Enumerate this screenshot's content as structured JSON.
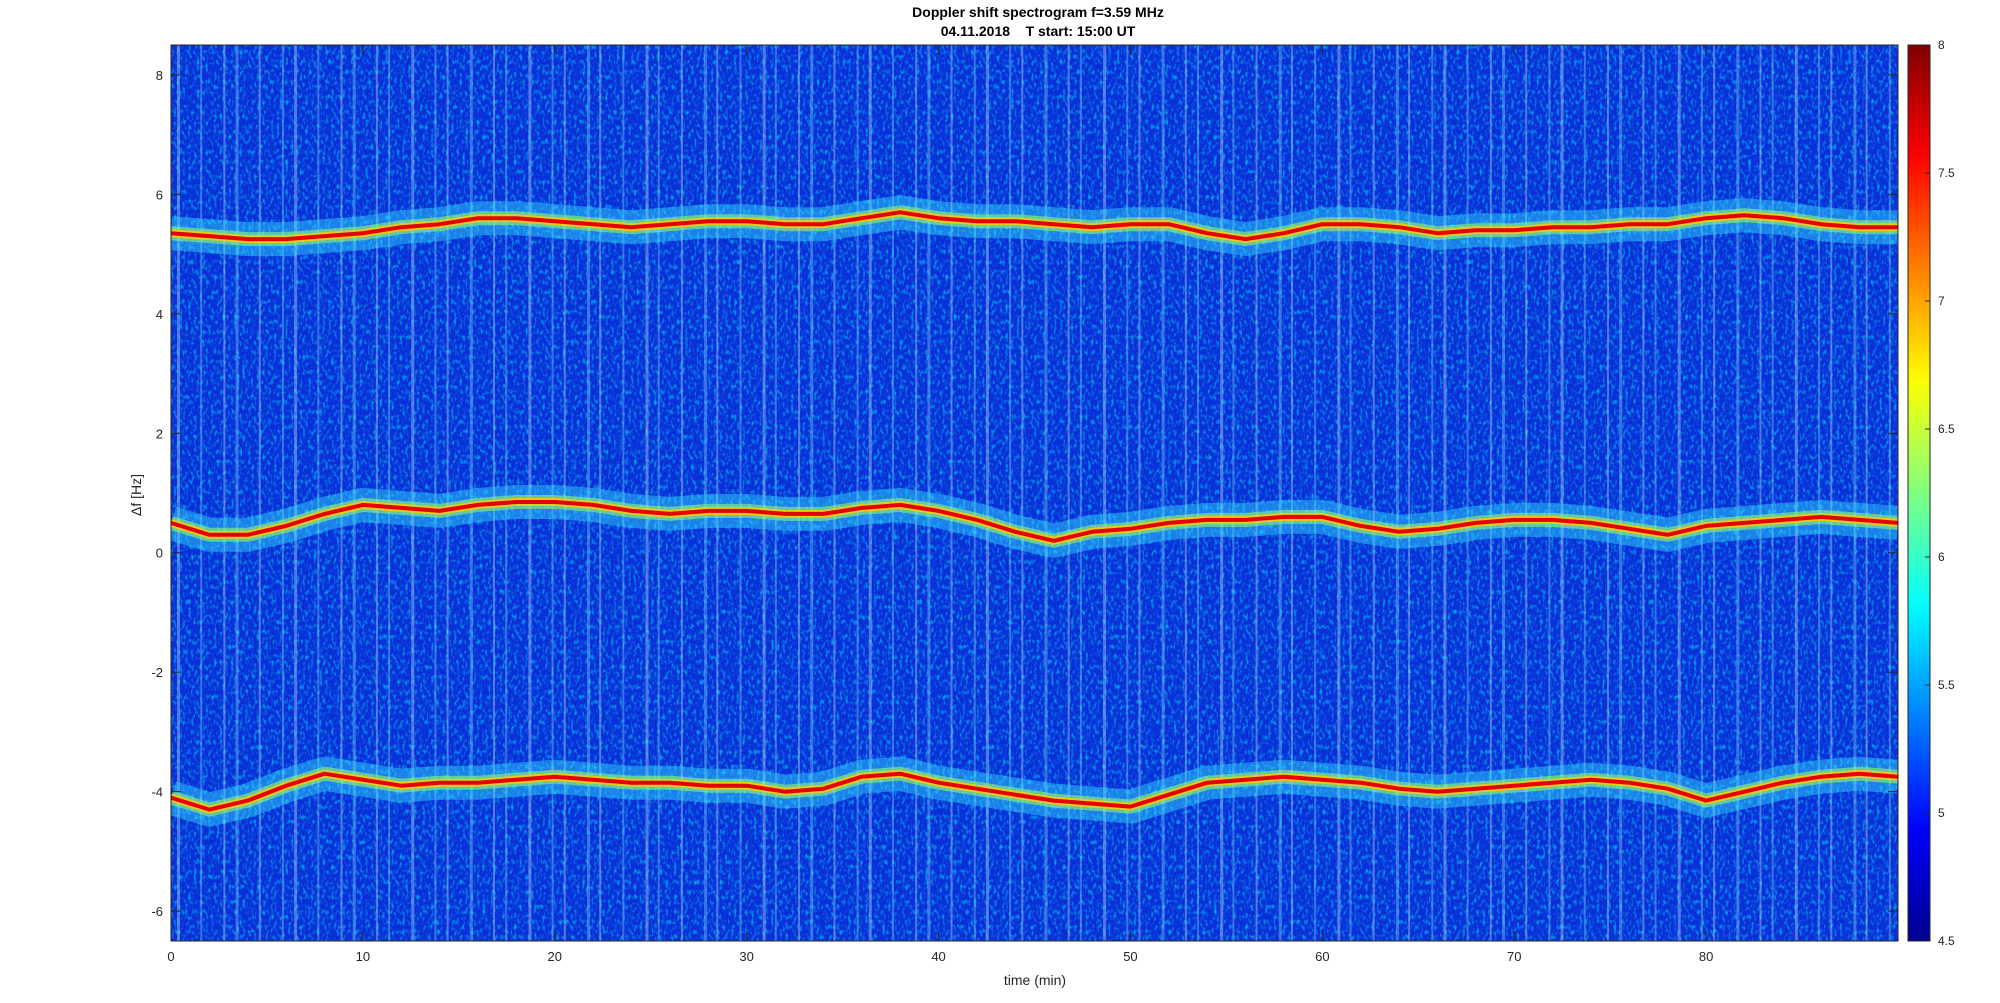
{
  "chart_data": {
    "type": "heatmap",
    "title": "Doppler shift spectrogram f=3.59 MHz",
    "subtitle": "04.11.2018    T start: 15:00 UT",
    "xlabel": "time (min)",
    "ylabel": "Δf [Hz]",
    "xlim": [
      0,
      90
    ],
    "ylim": [
      -6.5,
      8.5
    ],
    "xticks": [
      0,
      10,
      20,
      30,
      40,
      50,
      60,
      70,
      80
    ],
    "yticks": [
      -6,
      -4,
      -2,
      0,
      2,
      4,
      6,
      8
    ],
    "colorbar": {
      "colormap": "jet",
      "clim": [
        4.5,
        8
      ],
      "ticks": [
        4.5,
        5,
        5.5,
        6,
        6.5,
        7,
        7.5,
        8
      ]
    },
    "traces": [
      {
        "x": [
          0,
          2,
          4,
          6,
          8,
          10,
          12,
          14,
          16,
          18,
          20,
          22,
          24,
          26,
          28,
          30,
          32,
          34,
          36,
          38,
          40,
          42,
          44,
          46,
          48,
          50,
          52,
          54,
          56,
          58,
          60,
          62,
          64,
          66,
          68,
          70,
          72,
          74,
          76,
          78,
          80,
          82,
          84,
          86,
          88,
          90
        ],
        "y": [
          5.35,
          5.3,
          5.25,
          5.25,
          5.3,
          5.35,
          5.45,
          5.5,
          5.6,
          5.6,
          5.55,
          5.5,
          5.45,
          5.5,
          5.55,
          5.55,
          5.5,
          5.5,
          5.6,
          5.7,
          5.6,
          5.55,
          5.55,
          5.5,
          5.45,
          5.5,
          5.5,
          5.35,
          5.25,
          5.35,
          5.5,
          5.5,
          5.45,
          5.35,
          5.4,
          5.4,
          5.45,
          5.45,
          5.5,
          5.5,
          5.6,
          5.65,
          5.6,
          5.5,
          5.45,
          5.45
        ]
      },
      {
        "x": [
          0,
          2,
          4,
          6,
          8,
          10,
          12,
          14,
          16,
          18,
          20,
          22,
          24,
          26,
          28,
          30,
          32,
          34,
          36,
          38,
          40,
          42,
          44,
          46,
          48,
          50,
          52,
          54,
          56,
          58,
          60,
          62,
          64,
          66,
          68,
          70,
          72,
          74,
          76,
          78,
          80,
          82,
          84,
          86,
          88,
          90
        ],
        "y": [
          0.5,
          0.3,
          0.3,
          0.45,
          0.65,
          0.8,
          0.75,
          0.7,
          0.8,
          0.85,
          0.85,
          0.8,
          0.7,
          0.65,
          0.7,
          0.7,
          0.65,
          0.65,
          0.75,
          0.8,
          0.7,
          0.55,
          0.35,
          0.2,
          0.35,
          0.4,
          0.5,
          0.55,
          0.55,
          0.6,
          0.6,
          0.45,
          0.35,
          0.4,
          0.5,
          0.55,
          0.55,
          0.5,
          0.4,
          0.3,
          0.45,
          0.5,
          0.55,
          0.6,
          0.55,
          0.5
        ]
      },
      {
        "x": [
          0,
          2,
          4,
          6,
          8,
          10,
          12,
          14,
          16,
          18,
          20,
          22,
          24,
          26,
          28,
          30,
          32,
          34,
          36,
          38,
          40,
          42,
          44,
          46,
          48,
          50,
          52,
          54,
          56,
          58,
          60,
          62,
          64,
          66,
          68,
          70,
          72,
          74,
          76,
          78,
          80,
          82,
          84,
          86,
          88,
          90
        ],
        "y": [
          -4.1,
          -4.3,
          -4.15,
          -3.9,
          -3.7,
          -3.8,
          -3.9,
          -3.85,
          -3.85,
          -3.8,
          -3.75,
          -3.8,
          -3.85,
          -3.85,
          -3.9,
          -3.9,
          -4.0,
          -3.95,
          -3.75,
          -3.7,
          -3.85,
          -3.95,
          -4.05,
          -4.15,
          -4.2,
          -4.25,
          -4.05,
          -3.85,
          -3.8,
          -3.75,
          -3.8,
          -3.85,
          -3.95,
          -4.0,
          -3.95,
          -3.9,
          -3.85,
          -3.8,
          -3.85,
          -3.95,
          -4.15,
          -4.0,
          -3.85,
          -3.75,
          -3.7,
          -3.75
        ]
      }
    ]
  }
}
